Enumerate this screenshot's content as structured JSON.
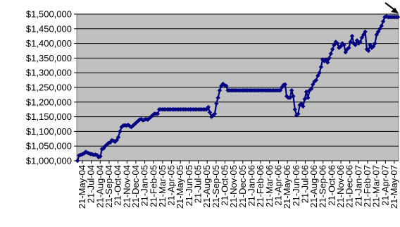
{
  "chart_data": {
    "type": "line",
    "title": "",
    "xlabel": "",
    "ylabel": "",
    "ylim": [
      1000000,
      1500000
    ],
    "y_tick_values": [
      1000000,
      1050000,
      1100000,
      1150000,
      1200000,
      1250000,
      1300000,
      1350000,
      1400000,
      1450000,
      1500000
    ],
    "y_tick_labels": [
      "$1,000,000",
      "$1,050,000",
      "$1,100,000",
      "$1,150,000",
      "$1,200,000",
      "$1,250,000",
      "$1,300,000",
      "$1,350,000",
      "$1,400,000",
      "$1,450,000",
      "$1,500,000"
    ],
    "x_tick_labels": [
      "21-May-04",
      "21-Jul-04",
      "21-Aug-04",
      "21-Sep-04",
      "21-Oct-04",
      "21-Nov-04",
      "21-Dec-04",
      "21-Jan-05",
      "21-Feb-05",
      "21-Mar-05",
      "21-Apr-05",
      "21-May-05",
      "21-Jun-05",
      "21-Jul-05",
      "21-Aug-05",
      "21-Sep-05",
      "21-Oct-05",
      "21-Nov-05",
      "21-Dec-05",
      "21-Jan-06",
      "21-Feb-06",
      "21-Mar-06",
      "21-Apr-06",
      "21-May-06",
      "21-Jun-06",
      "21-Jul-06",
      "21-Aug-06",
      "21-Sep-06",
      "21-Oct-06",
      "21-Nov-06",
      "21-Dec-06",
      "21-Jan-07",
      "21-Feb-07",
      "21-Mar-07",
      "21-Apr-07",
      "21-May-07"
    ],
    "grid": "horizontal",
    "plot_background": "#c0c0c0",
    "series_color": "#000080",
    "marker": "diamond",
    "annotation": "arrow pointing to last data point",
    "series": [
      {
        "values": [
          1000000,
          1018000,
          1020000,
          1022000,
          1025000,
          1030000,
          1028000,
          1025000,
          1023000,
          1022000,
          1020000,
          1021000,
          1019000,
          1012000,
          1015000,
          1040000,
          1042000,
          1050000,
          1055000,
          1060000,
          1062000,
          1070000,
          1068000,
          1065000,
          1070000,
          1080000,
          1100000,
          1115000,
          1120000,
          1121000,
          1120000,
          1122000,
          1118000,
          1115000,
          1120000,
          1125000,
          1130000,
          1135000,
          1140000,
          1142000,
          1138000,
          1140000,
          1142000,
          1140000,
          1145000,
          1150000,
          1155000,
          1160000,
          1160000,
          1160000,
          1175000,
          1175000,
          1175000,
          1175000,
          1175000,
          1175000,
          1175000,
          1175000,
          1175000,
          1175000,
          1175000,
          1175000,
          1175000,
          1175000,
          1175000,
          1175000,
          1175000,
          1175000,
          1175000,
          1175000,
          1175000,
          1175000,
          1175000,
          1175000,
          1175000,
          1175000,
          1175000,
          1175000,
          1175000,
          1175000,
          1183000,
          1165000,
          1150000,
          1155000,
          1160000,
          1195000,
          1215000,
          1240000,
          1255000,
          1262000,
          1258000,
          1255000,
          1240000,
          1240000,
          1240000,
          1240000,
          1240000,
          1240000,
          1240000,
          1240000,
          1240000,
          1240000,
          1240000,
          1240000,
          1240000,
          1240000,
          1240000,
          1240000,
          1240000,
          1240000,
          1240000,
          1240000,
          1240000,
          1240000,
          1240000,
          1240000,
          1240000,
          1240000,
          1240000,
          1240000,
          1240000,
          1240000,
          1240000,
          1240000,
          1240000,
          1250000,
          1258000,
          1260000,
          1220000,
          1215000,
          1215000,
          1240000,
          1220000,
          1175000,
          1155000,
          1160000,
          1190000,
          1195000,
          1185000,
          1210000,
          1235000,
          1215000,
          1240000,
          1245000,
          1260000,
          1270000,
          1275000,
          1290000,
          1300000,
          1320000,
          1345000,
          1340000,
          1345000,
          1335000,
          1350000,
          1365000,
          1380000,
          1395000,
          1405000,
          1400000,
          1385000,
          1390000,
          1400000,
          1395000,
          1370000,
          1380000,
          1385000,
          1405000,
          1425000,
          1400000,
          1395000,
          1410000,
          1400000,
          1405000,
          1420000,
          1430000,
          1440000,
          1380000,
          1375000,
          1395000,
          1385000,
          1390000,
          1400000,
          1430000,
          1440000,
          1450000,
          1460000,
          1475000,
          1490000,
          1492000,
          1490000,
          1490000,
          1490000,
          1490000,
          1490000,
          1490000,
          1490000
        ]
      }
    ]
  }
}
